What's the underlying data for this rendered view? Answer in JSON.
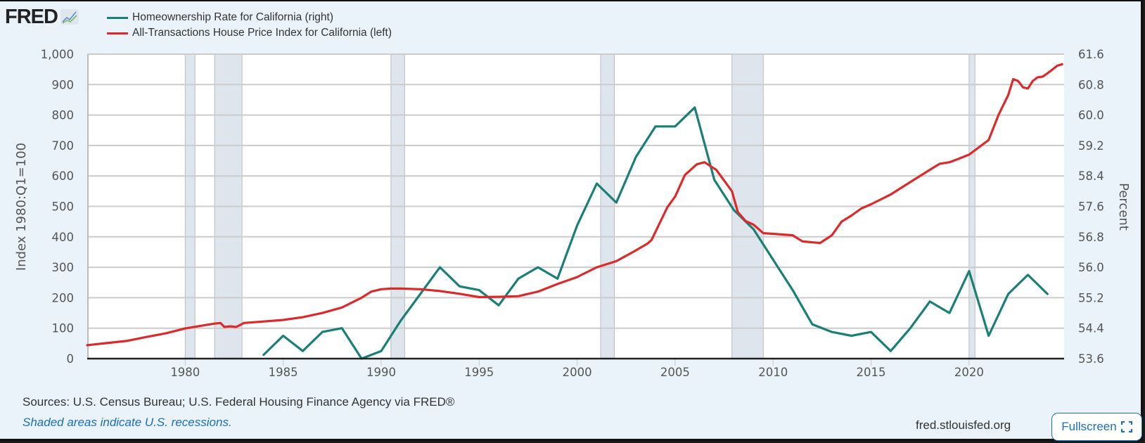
{
  "header": {
    "logo_text": "FRED",
    "logo_icon": "line-chart-icon"
  },
  "footer": {
    "sources": "Sources: U.S. Census Bureau; U.S. Federal Housing Finance Agency via FRED®",
    "note": "Shaded areas indicate U.S. recessions.",
    "site": "fred.stlouisfed.org",
    "fullscreen_label": "Fullscreen",
    "fullscreen_icon": "expand-icon"
  },
  "colors": {
    "teal": "#1a7f76",
    "red": "#dc2a2a",
    "recession": "#dfe5ec",
    "grid": "#cccccc",
    "background": "#eaf2fa"
  },
  "chart_data": {
    "type": "line",
    "title": "",
    "xlabel": "",
    "xlim": [
      1975.0,
      2024.85
    ],
    "x_ticks": [
      "1980",
      "1985",
      "1990",
      "1995",
      "2000",
      "2005",
      "2010",
      "2015",
      "2020"
    ],
    "y_left": {
      "label": "Index 1980:Q1=100",
      "range": [
        0,
        1000
      ],
      "ticks": [
        "0",
        "100",
        "200",
        "300",
        "400",
        "500",
        "600",
        "700",
        "800",
        "900",
        "1,000"
      ]
    },
    "y_right": {
      "label": "Percent",
      "range": [
        53.6,
        61.6
      ],
      "ticks": [
        "53.6",
        "54.4",
        "55.2",
        "56.0",
        "56.8",
        "57.6",
        "58.4",
        "59.2",
        "60.0",
        "60.8",
        "61.6"
      ]
    },
    "grid": true,
    "legend_position": "top-left",
    "recessions": [
      [
        1980.0,
        1980.5
      ],
      [
        1981.5,
        1982.9
      ],
      [
        1990.5,
        1991.2
      ],
      [
        2001.2,
        2001.9
      ],
      [
        2007.9,
        2009.5
      ],
      [
        2020.0,
        2020.3
      ]
    ],
    "series": [
      {
        "name": "Homeownership Rate for California (right)",
        "axis": "right",
        "color": "#1a7f76",
        "x": [
          1984,
          1985,
          1986,
          1987,
          1988,
          1989,
          1990,
          1991,
          1992,
          1993,
          1994,
          1995,
          1996,
          1997,
          1998,
          1999,
          2000,
          2001,
          2002,
          2003,
          2004,
          2005,
          2006,
          2007,
          2008,
          2009,
          2010,
          2011,
          2012,
          2013,
          2014,
          2015,
          2016,
          2017,
          2018,
          2019,
          2020,
          2021,
          2022,
          2023,
          2024
        ],
        "values": [
          53.7,
          54.2,
          53.8,
          54.3,
          54.4,
          53.6,
          53.8,
          54.6,
          55.3,
          56.0,
          55.5,
          55.4,
          55.0,
          55.7,
          56.0,
          55.7,
          57.1,
          58.2,
          57.7,
          58.9,
          59.7,
          59.7,
          60.2,
          58.3,
          57.5,
          57.0,
          56.2,
          55.4,
          54.5,
          54.3,
          54.2,
          54.3,
          53.8,
          54.4,
          55.1,
          54.8,
          55.9,
          54.2,
          55.3,
          55.8,
          55.3
        ]
      },
      {
        "name": "All-Transactions House Price Index for California (left)",
        "axis": "left",
        "color": "#dc2a2a",
        "x": [
          1975.0,
          1976,
          1977,
          1978,
          1979,
          1980,
          1981,
          1981.5,
          1981.8,
          1982,
          1982.3,
          1982.6,
          1983,
          1984,
          1985,
          1986,
          1987,
          1988,
          1989,
          1989.5,
          1990,
          1990.5,
          1991,
          1992,
          1993,
          1994,
          1995,
          1996,
          1997,
          1998,
          1999,
          2000,
          2001,
          2002,
          2002.9,
          2003.6,
          2003.8,
          2004.1,
          2004.6,
          2005,
          2005.5,
          2006.1,
          2006.5,
          2007.1,
          2007.9,
          2008.2,
          2008.6,
          2009,
          2009.5,
          2010,
          2011,
          2011.5,
          2012,
          2012.4,
          2013,
          2013.5,
          2014,
          2014.5,
          2015,
          2016,
          2017,
          2018,
          2018.5,
          2019,
          2019.5,
          2020,
          2021,
          2021.5,
          2022,
          2022.25,
          2022.5,
          2022.75,
          2023,
          2023.25,
          2023.5,
          2023.75,
          2024,
          2024.5,
          2024.75
        ],
        "values": [
          44,
          51,
          58,
          71,
          83,
          99,
          110,
          115,
          117,
          104,
          106,
          104,
          117,
          122,
          127,
          136,
          150,
          168,
          200,
          220,
          228,
          230,
          230,
          228,
          222,
          213,
          202,
          203,
          205,
          220,
          245,
          268,
          300,
          320,
          352,
          378,
          390,
          430,
          497,
          532,
          603,
          638,
          645,
          620,
          550,
          481,
          452,
          440,
          412,
          410,
          405,
          385,
          382,
          380,
          405,
          450,
          470,
          493,
          507,
          539,
          580,
          620,
          640,
          645,
          657,
          670,
          718,
          800,
          866,
          918,
          912,
          891,
          887,
          912,
          924,
          926,
          937,
          962,
          967
        ]
      }
    ]
  }
}
